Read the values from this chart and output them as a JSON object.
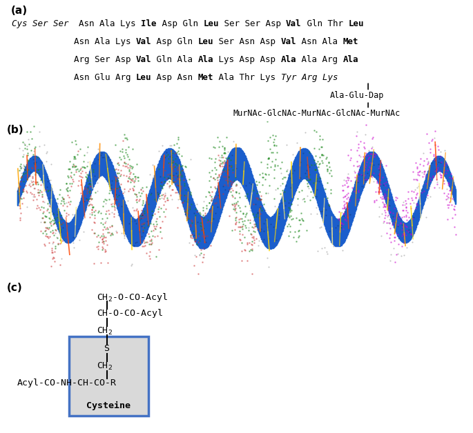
{
  "panel_a_label": "(a)",
  "panel_b_label": "(b)",
  "panel_c_label": "(c)",
  "bg_color": "#ffffff",
  "box_color": "#4472C4",
  "box_fill": "#d9d9d9",
  "text_color": "#000000",
  "seq_fontsize": 9.0,
  "line1": [
    {
      "t": "Cys Ser Ser",
      "b": false,
      "i": true
    },
    {
      "t": "  Asn Ala Lys ",
      "b": false,
      "i": false
    },
    {
      "t": "Ile",
      "b": true,
      "i": false
    },
    {
      "t": " Asp Gln ",
      "b": false,
      "i": false
    },
    {
      "t": "Leu",
      "b": true,
      "i": false
    },
    {
      "t": " Ser Ser Asp ",
      "b": false,
      "i": false
    },
    {
      "t": "Val",
      "b": true,
      "i": false
    },
    {
      "t": " Gln Thr ",
      "b": false,
      "i": false
    },
    {
      "t": "Leu",
      "b": true,
      "i": false
    }
  ],
  "line2": [
    {
      "t": "            Asn Ala Lys ",
      "b": false,
      "i": false
    },
    {
      "t": "Val",
      "b": true,
      "i": false
    },
    {
      "t": " Asp Gln ",
      "b": false,
      "i": false
    },
    {
      "t": "Leu",
      "b": true,
      "i": false
    },
    {
      "t": " Ser Asn Asp ",
      "b": false,
      "i": false
    },
    {
      "t": "Val",
      "b": true,
      "i": false
    },
    {
      "t": " Asn Ala ",
      "b": false,
      "i": false
    },
    {
      "t": "Met",
      "b": true,
      "i": false
    }
  ],
  "line3": [
    {
      "t": "            Arg Ser Asp ",
      "b": false,
      "i": false
    },
    {
      "t": "Val",
      "b": true,
      "i": false
    },
    {
      "t": " Gln Ala ",
      "b": false,
      "i": false
    },
    {
      "t": "Ala",
      "b": true,
      "i": false
    },
    {
      "t": " Lys Asp Asp ",
      "b": false,
      "i": false
    },
    {
      "t": "Ala",
      "b": true,
      "i": false
    },
    {
      "t": " Ala Arg ",
      "b": false,
      "i": false
    },
    {
      "t": "Ala",
      "b": true,
      "i": false
    }
  ],
  "line4": [
    {
      "t": "            Asn Glu Arg ",
      "b": false,
      "i": false
    },
    {
      "t": "Leu",
      "b": true,
      "i": false
    },
    {
      "t": " Asp Asn ",
      "b": false,
      "i": false
    },
    {
      "t": "Met",
      "b": true,
      "i": false
    },
    {
      "t": " Ala Thr Lys ",
      "b": false,
      "i": false
    },
    {
      "t": "Tyr Arg Lys",
      "b": false,
      "i": true
    }
  ]
}
